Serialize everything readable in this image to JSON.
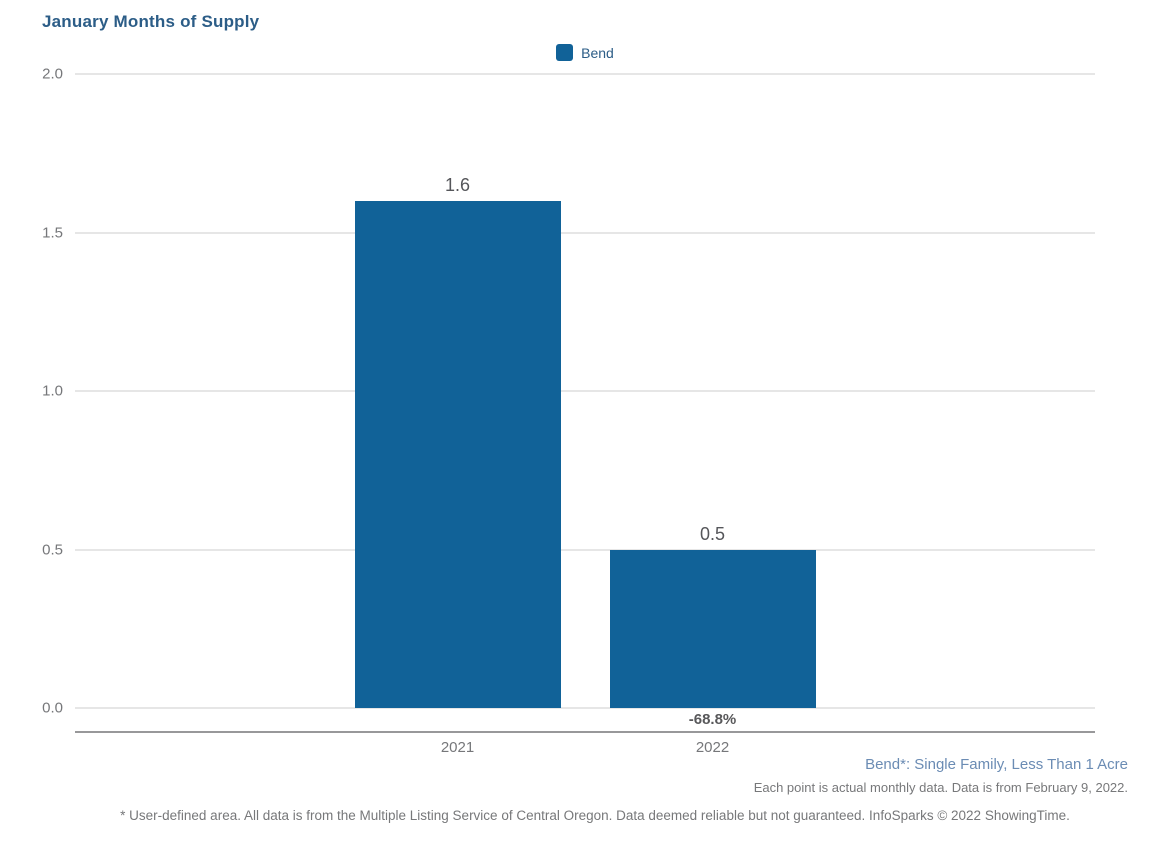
{
  "title": "January Months of Supply",
  "legend": {
    "items": [
      {
        "label": "Bend",
        "color": "#116298"
      }
    ]
  },
  "footnotes": {
    "series_definition": "Bend*: Single Family, Less Than 1 Acre",
    "data_note": "Each point is actual monthly data. Data is from February 9, 2022.",
    "disclaimer": "* User-defined area. All data is from the Multiple Listing Service of Central Oregon. Data deemed reliable but not guaranteed. InfoSparks © 2022 ShowingTime."
  },
  "colors": {
    "bar": "#116298",
    "title_text": "#2c5d87",
    "series_definition_text": "#6b8cb4",
    "muted_text": "#77787a",
    "value_label_text": "#55565a",
    "gridline": "#e6e6e6",
    "axis_line": "#98989a"
  },
  "chart_data": {
    "type": "bar",
    "title": "January Months of Supply",
    "categories": [
      "2021",
      "2022"
    ],
    "series": [
      {
        "name": "Bend",
        "values": [
          1.6,
          0.5
        ]
      }
    ],
    "value_labels": [
      "1.6",
      "0.5"
    ],
    "change_labels": [
      "",
      "-68.8%"
    ],
    "yticks": [
      "2.0",
      "1.5",
      "1.0",
      "0.5",
      "0.0"
    ],
    "ylim": [
      0,
      2
    ],
    "grid": "horizontal",
    "legend_position": "top-center",
    "band_centers_frac": [
      0.375,
      0.625
    ]
  }
}
